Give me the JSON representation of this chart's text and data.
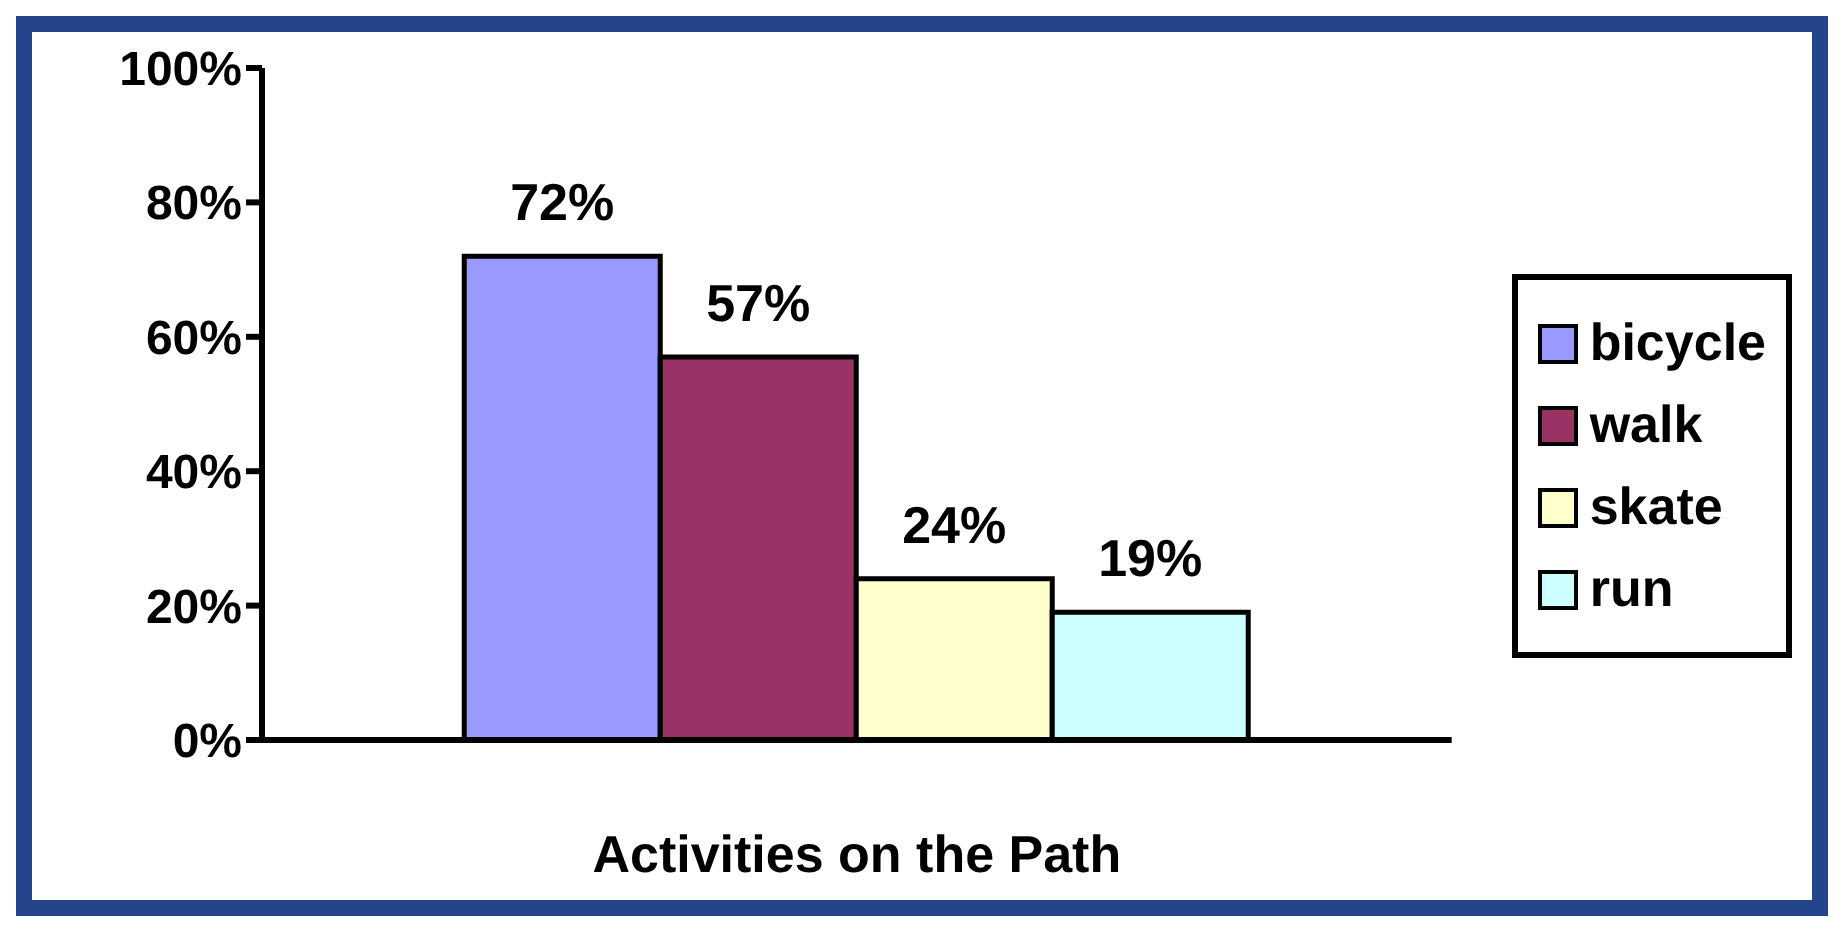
{
  "chart_data": {
    "type": "bar",
    "xlabel": "Activities on the Path",
    "categories": [
      null
    ],
    "series": [
      {
        "name": "bicycle",
        "color": "#9999ff",
        "values": [
          72
        ],
        "value_labels": [
          "72%"
        ]
      },
      {
        "name": "walk",
        "color": "#993366",
        "values": [
          57
        ],
        "value_labels": [
          "57%"
        ]
      },
      {
        "name": "skate",
        "color": "#ffffcc",
        "values": [
          24
        ],
        "value_labels": [
          "24%"
        ]
      },
      {
        "name": "run",
        "color": "#ccffff",
        "values": [
          19
        ],
        "value_labels": [
          "19%"
        ]
      }
    ],
    "ylim": [
      0,
      100
    ],
    "yticks": [
      {
        "value": 0,
        "label": "0%"
      },
      {
        "value": 20,
        "label": "20%"
      },
      {
        "value": 40,
        "label": "40%"
      },
      {
        "value": 60,
        "label": "60%"
      },
      {
        "value": 80,
        "label": "80%"
      },
      {
        "value": 100,
        "label": "100%"
      }
    ],
    "grid": false,
    "legend": "right"
  }
}
